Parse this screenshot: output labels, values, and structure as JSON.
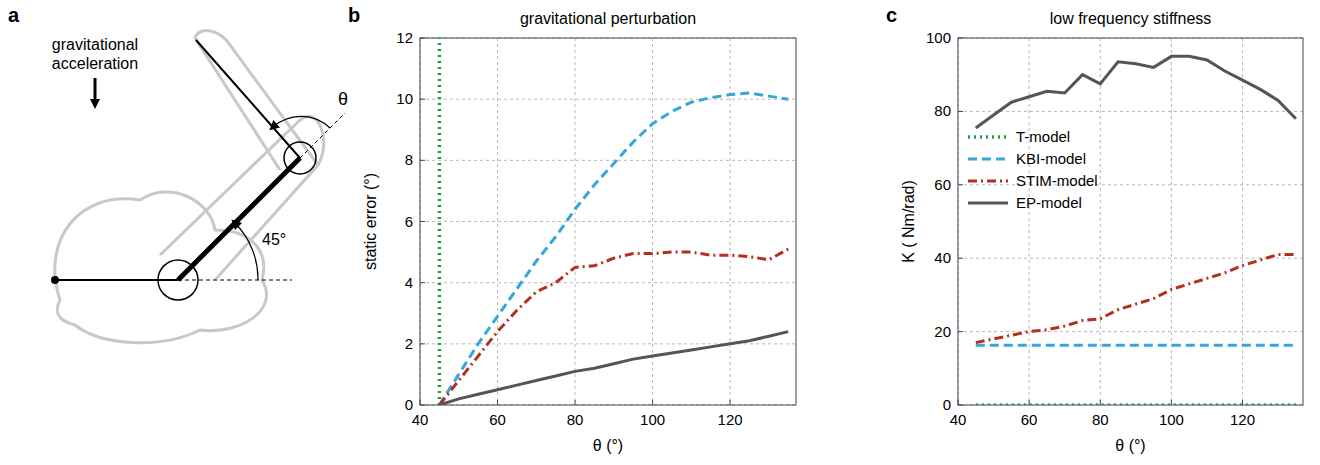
{
  "diagram": {
    "label": "a",
    "annotation": "gravitational acceleration",
    "angle_label": "θ",
    "shoulder_angle_label": "45°"
  },
  "chart_data": [
    {
      "type": "line",
      "panel": "b",
      "title": "gravitational perturbation",
      "x_label": "θ (°)",
      "y_label": "static error (°)",
      "x": [
        45,
        50,
        55,
        60,
        65,
        70,
        75,
        80,
        85,
        90,
        95,
        100,
        105,
        110,
        115,
        120,
        125,
        130,
        135
      ],
      "xlim": [
        40,
        137
      ],
      "xticks": [
        40,
        60,
        80,
        100,
        120
      ],
      "ylim": [
        0,
        12
      ],
      "yticks": [
        0,
        2,
        4,
        6,
        8,
        10,
        12
      ],
      "grid": true,
      "series": [
        {
          "color": "#1f9e48",
          "line_style": "dotted",
          "x": [
            45,
            45
          ],
          "values": [
            0,
            12
          ]
        },
        {
          "color": "#37a6dc",
          "line_style": "dashed",
          "values": [
            0,
            1.0,
            2.0,
            2.9,
            3.8,
            4.7,
            5.5,
            6.4,
            7.2,
            7.9,
            8.6,
            9.2,
            9.6,
            9.9,
            10.05,
            10.15,
            10.2,
            10.1,
            10.0
          ]
        },
        {
          "color": "#b3301c",
          "line_style": "dashdot",
          "values": [
            0,
            0.8,
            1.6,
            2.4,
            3.1,
            3.7,
            4.0,
            4.5,
            4.55,
            4.8,
            4.95,
            4.95,
            5.0,
            5.0,
            4.9,
            4.9,
            4.85,
            4.75,
            5.1
          ]
        },
        {
          "color": "#555555",
          "line_style": "solid",
          "values": [
            0,
            0.2,
            0.35,
            0.5,
            0.65,
            0.8,
            0.95,
            1.1,
            1.2,
            1.35,
            1.5,
            1.6,
            1.7,
            1.8,
            1.9,
            2.0,
            2.1,
            2.25,
            2.4
          ]
        }
      ]
    },
    {
      "type": "line",
      "panel": "c",
      "title": "low frequency stiffness",
      "x_label": "θ (°)",
      "y_label": "K ( Nm/rad)",
      "x": [
        45,
        50,
        55,
        60,
        65,
        70,
        75,
        80,
        85,
        90,
        95,
        100,
        105,
        110,
        115,
        120,
        125,
        130,
        135
      ],
      "xlim": [
        40,
        137
      ],
      "xticks": [
        40,
        60,
        80,
        100,
        120
      ],
      "ylim": [
        0,
        100
      ],
      "yticks": [
        0,
        20,
        40,
        60,
        80,
        100
      ],
      "grid": true,
      "legend": "upper left",
      "series": [
        {
          "name": "T-model",
          "color": "#1f9e48",
          "line_style": "dotted",
          "values": [
            0,
            0,
            0,
            0,
            0,
            0,
            0,
            0,
            0,
            0,
            0,
            0,
            0,
            0,
            0,
            0,
            0,
            0,
            0
          ]
        },
        {
          "name": "KBI-model",
          "color": "#37a6dc",
          "line_style": "dashed",
          "values": [
            16.3,
            16.3,
            16.3,
            16.3,
            16.3,
            16.3,
            16.3,
            16.3,
            16.3,
            16.3,
            16.3,
            16.3,
            16.3,
            16.3,
            16.3,
            16.3,
            16.3,
            16.3,
            16.3
          ]
        },
        {
          "name": "STIM-model",
          "color": "#b3301c",
          "line_style": "dashdot",
          "values": [
            17,
            18,
            19,
            20,
            20.5,
            21.5,
            23,
            23.5,
            26,
            27.5,
            29,
            31.5,
            33,
            34.5,
            36,
            38,
            39.5,
            41,
            41
          ]
        },
        {
          "name": "EP-model",
          "color": "#555555",
          "line_style": "solid",
          "values": [
            75.5,
            79,
            82.5,
            84,
            85.5,
            85,
            90,
            87.5,
            93.5,
            93,
            92,
            95,
            95,
            94,
            91,
            88.5,
            86,
            83,
            78
          ]
        }
      ]
    }
  ]
}
